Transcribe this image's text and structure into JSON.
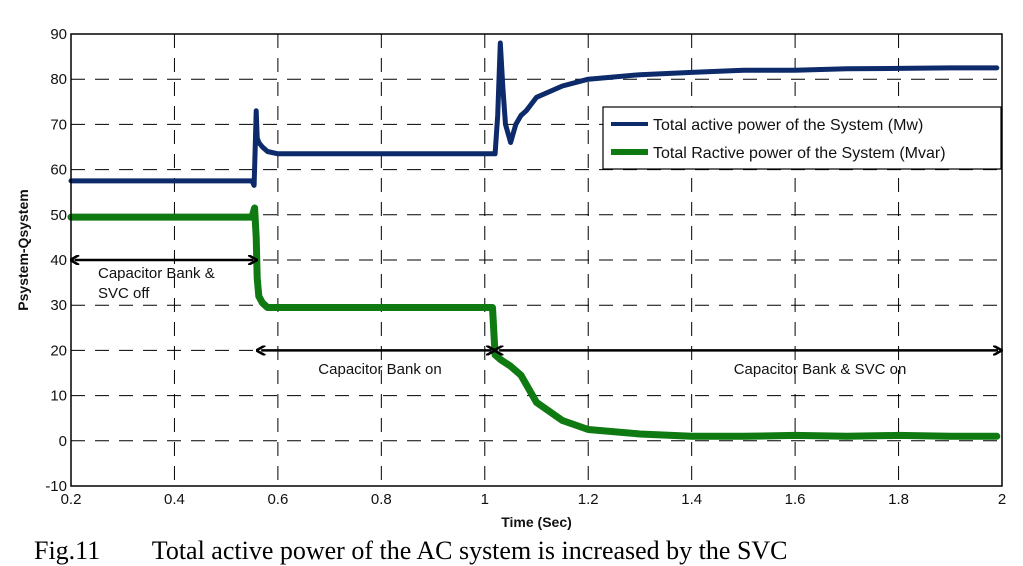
{
  "chart_data": {
    "type": "line",
    "title": "",
    "xlabel": "Time (Sec)",
    "ylabel": "Psystem-Qsystem",
    "xlim": [
      0.2,
      2.0
    ],
    "ylim": [
      -10,
      90
    ],
    "xticks": [
      0.2,
      0.4,
      0.6,
      0.8,
      1,
      1.2,
      1.4,
      1.6,
      1.8,
      2
    ],
    "xtick_labels": [
      "0.2",
      "0.4",
      "0.6",
      "0.8",
      "1",
      "1.2",
      "1.4",
      "1.6",
      "1.8",
      "2"
    ],
    "yticks": [
      -10,
      0,
      10,
      20,
      30,
      40,
      50,
      60,
      70,
      80,
      90
    ],
    "ytick_labels": [
      "-10",
      "0",
      "10",
      "20",
      "30",
      "40",
      "50",
      "60",
      "70",
      "80",
      "90"
    ],
    "grid": true,
    "legend_position": "upper right (inside)",
    "series": [
      {
        "name": "Total active power of the System (Mw)",
        "color": "#0d2a6b",
        "x": [
          0.2,
          0.3,
          0.4,
          0.5,
          0.55,
          0.554,
          0.556,
          0.558,
          0.56,
          0.563,
          0.57,
          0.58,
          0.6,
          0.7,
          0.8,
          0.9,
          1.0,
          1.02,
          1.025,
          1.03,
          1.035,
          1.04,
          1.05,
          1.06,
          1.07,
          1.075,
          1.08,
          1.09,
          1.1,
          1.15,
          1.2,
          1.3,
          1.4,
          1.5,
          1.6,
          1.7,
          1.8,
          1.9,
          1.99
        ],
        "values": [
          57.5,
          57.5,
          57.5,
          57.5,
          57.5,
          56.5,
          64,
          73,
          67,
          66,
          65,
          64,
          63.5,
          63.5,
          63.5,
          63.5,
          63.5,
          63.5,
          72,
          88,
          78,
          70,
          66,
          70,
          72,
          72.5,
          73,
          74.5,
          76,
          78.5,
          80,
          81,
          81.5,
          82,
          82,
          82.3,
          82.4,
          82.5,
          82.5
        ]
      },
      {
        "name": "Total Ractive power of the System (Mvar)",
        "color": "#0f7a12",
        "x": [
          0.2,
          0.3,
          0.4,
          0.5,
          0.55,
          0.555,
          0.558,
          0.56,
          0.563,
          0.57,
          0.58,
          0.6,
          0.7,
          0.8,
          0.9,
          1.0,
          1.015,
          1.02,
          1.03,
          1.05,
          1.07,
          1.1,
          1.15,
          1.2,
          1.3,
          1.4,
          1.5,
          1.6,
          1.7,
          1.8,
          1.9,
          1.99
        ],
        "values": [
          49.5,
          49.5,
          49.5,
          49.5,
          49.5,
          51.5,
          45,
          36,
          32,
          30.5,
          29.5,
          29.5,
          29.5,
          29.5,
          29.5,
          29.5,
          29.5,
          19,
          18,
          16.5,
          14.5,
          8.5,
          4.5,
          2.5,
          1.5,
          1,
          1,
          1.2,
          1,
          1.2,
          1,
          1
        ]
      }
    ],
    "annotations": [
      {
        "text_lines": [
          "Capacitor Bank &",
          "SVC off"
        ],
        "arrow_from_x": 0.2,
        "arrow_to_x": 0.56,
        "arrow_y": 40
      },
      {
        "text_lines": [
          "Capacitor Bank on"
        ],
        "arrow_from_x": 0.56,
        "arrow_to_x": 1.02,
        "arrow_y": 20
      },
      {
        "text_lines": [
          "Capacitor Bank & SVC on"
        ],
        "arrow_from_x": 1.02,
        "arrow_to_x": 2.0,
        "arrow_y": 20
      }
    ]
  },
  "caption": "Fig.11        Total active power of the AC system is increased by the SVC"
}
